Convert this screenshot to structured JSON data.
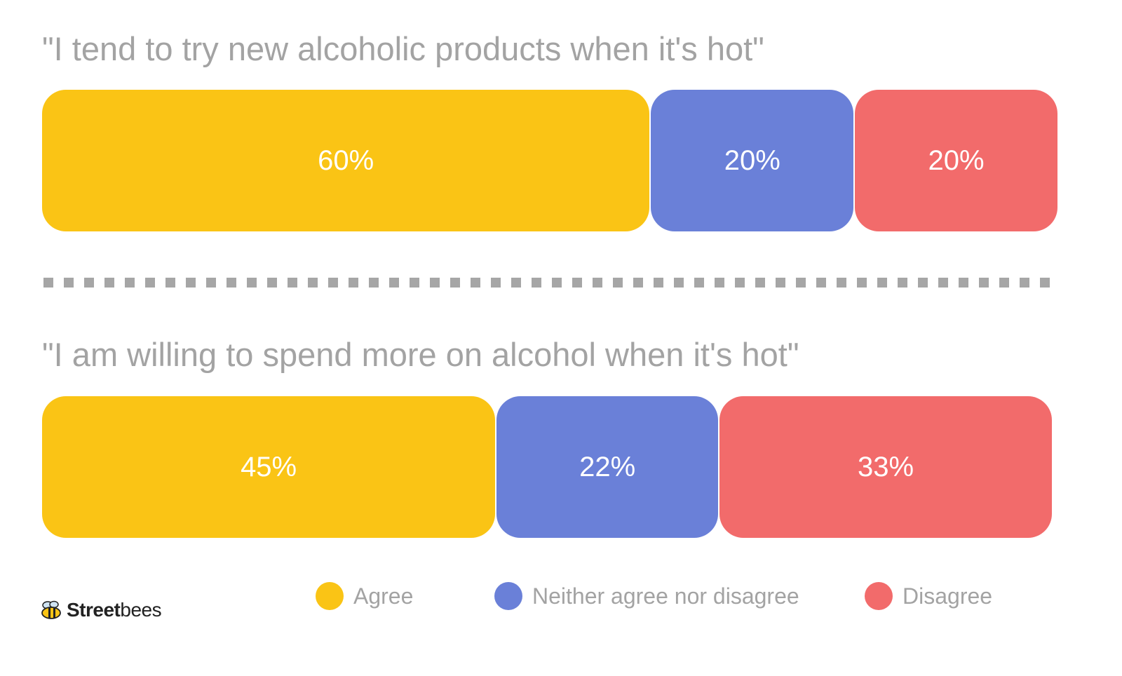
{
  "chart_data": [
    {
      "type": "bar",
      "orientation": "horizontal-stacked",
      "title": "\"I tend to try new alcoholic products when it's hot\"",
      "categories": [
        "Agree",
        "Neither agree nor disagree",
        "Disagree"
      ],
      "values": [
        60,
        20,
        20
      ],
      "labels": [
        "60%",
        "20%",
        "20%"
      ],
      "unit": "%",
      "legend": "bottom"
    },
    {
      "type": "bar",
      "orientation": "horizontal-stacked",
      "title": "\"I am willing to spend more on alcohol when it's hot\"",
      "categories": [
        "Agree",
        "Neither agree nor disagree",
        "Disagree"
      ],
      "values": [
        45,
        22,
        33
      ],
      "labels": [
        "45%",
        "22%",
        "33%"
      ],
      "unit": "%",
      "legend": "bottom"
    }
  ],
  "legend": {
    "items": [
      {
        "label": "Agree",
        "color": "#fac415"
      },
      {
        "label": "Neither agree nor disagree",
        "color": "#6a80d8"
      },
      {
        "label": "Disagree",
        "color": "#f26b6b"
      }
    ]
  },
  "logo": {
    "word_bold": "Street",
    "word_light": "bees",
    "icon": "bee-icon"
  },
  "colors": {
    "agree": "#fac415",
    "neither": "#6a80d8",
    "disagree": "#f26b6b",
    "text_muted": "#a3a3a3"
  }
}
